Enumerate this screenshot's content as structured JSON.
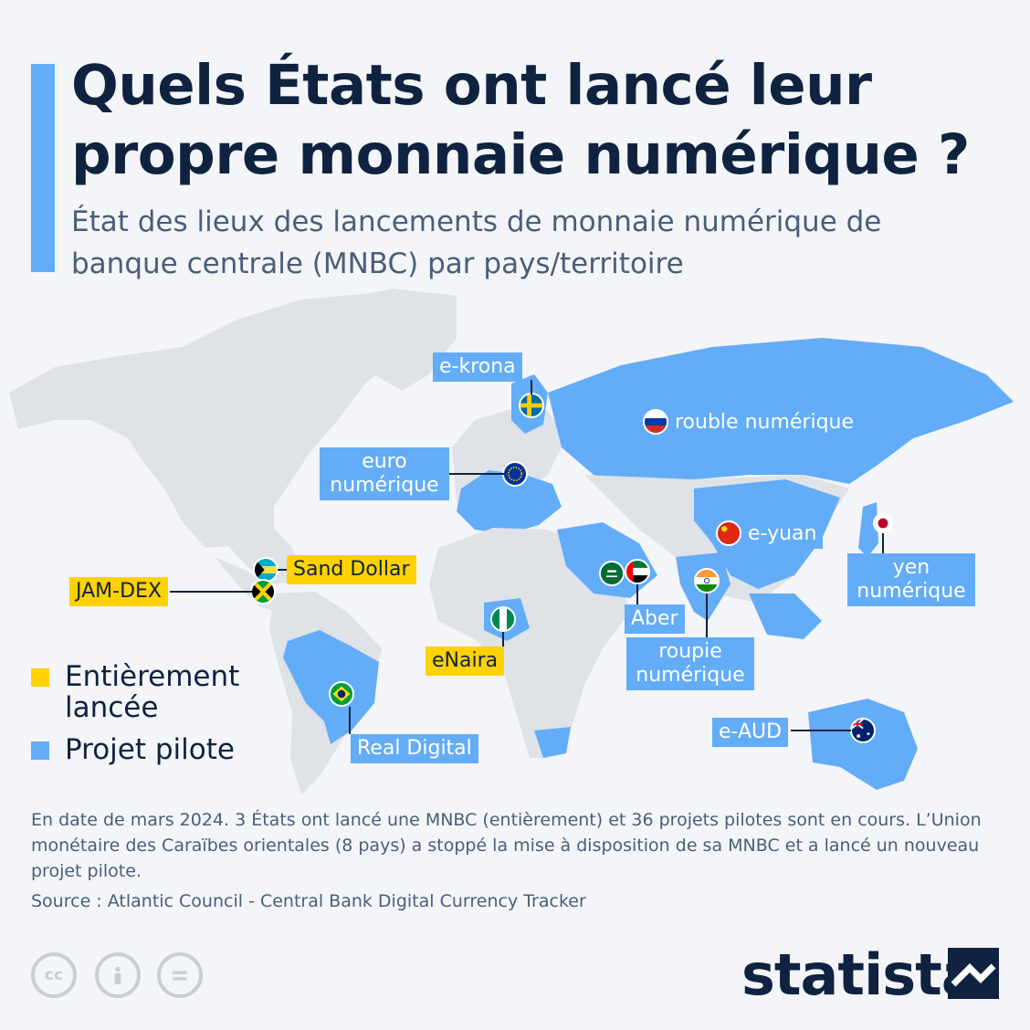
{
  "header": {
    "title": "Quels États ont lancé leur propre monnaie numérique ?",
    "subtitle": "État des lieux des lancements de monnaie numérique de banque centrale (MNBC) par pays/territoire"
  },
  "colors": {
    "pilot": "#63acf7",
    "launched": "#ffd200",
    "land": "#dfe2e7",
    "text": "#0f2340"
  },
  "map": {
    "labels": {
      "sweden": "e-krona",
      "russia": "rouble numérique",
      "euro": "euro numérique",
      "china": "e-yuan",
      "japan": "yen numérique",
      "bahamas": "Sand Dollar",
      "jamaica": "JAM-DEX",
      "uae_saudi": "Aber",
      "india": "roupie numérique",
      "nigeria": "eNaira",
      "brazil": "Real Digital",
      "australia": "e-AUD"
    }
  },
  "legend": {
    "launched": "Entièrement lancée",
    "pilot": "Projet pilote"
  },
  "footer": {
    "note": "En date de mars 2024. 3 États ont lancé une MNBC (entièrement) et 36 projets pilotes sont en cours. L’Union monétaire des Caraïbes orientales (8 pays) a stoppé la mise à disposition de sa MNBC et a lancé un nouveau projet pilote.",
    "source": "Source : Atlantic Council - Central Bank Digital Currency Tracker",
    "brand": "statista"
  }
}
